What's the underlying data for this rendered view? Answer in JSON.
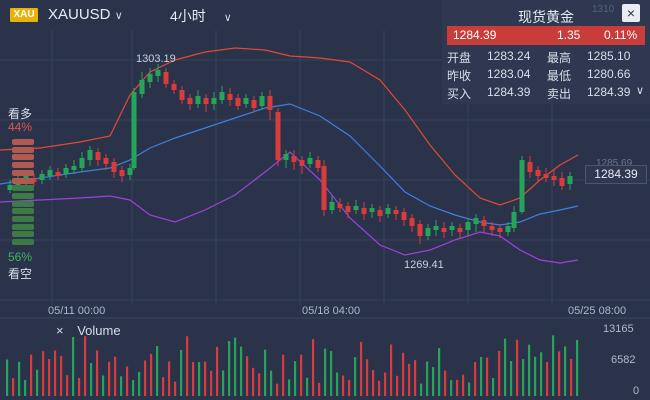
{
  "header": {
    "badge": "XAU",
    "symbol": "XAUUSD",
    "period": "4小时"
  },
  "info_panel": {
    "title": "现货黄金",
    "price": "1284.39",
    "change": "1.35",
    "change_pct": "0.11%",
    "rows": [
      {
        "l1": "开盘",
        "v1": "1283.24",
        "l2": "最高",
        "v2": "1285.10"
      },
      {
        "l1": "昨收",
        "v1": "1283.04",
        "l2": "最低",
        "v2": "1280.66"
      },
      {
        "l1": "买入",
        "v1": "1284.39",
        "l2": "卖出",
        "v2": "1284.39"
      }
    ],
    "hidden_axis_value": "1310"
  },
  "sentiment": {
    "bull_label": "看多",
    "bull_pct": "44%",
    "bear_pct": "56%",
    "bear_label": "看空",
    "bull_value": 0.44
  },
  "annotations": {
    "high": "1303.19",
    "low": "1269.41",
    "axis_faded": "1285.69"
  },
  "current_price_tag": "1284.39",
  "xaxis": [
    "05/11 00:00",
    "05/18 04:00",
    "05/25 08:00"
  ],
  "volume": {
    "label": "Volume",
    "axis": [
      "13165",
      "6582",
      "0"
    ]
  },
  "colors": {
    "up": "#26a55a",
    "down": "#d83c3c",
    "upper_band": "#e04a3a",
    "mid_band": "#3f7fe0",
    "lower_band": "#a040e0",
    "background": "#2a3349"
  }
}
